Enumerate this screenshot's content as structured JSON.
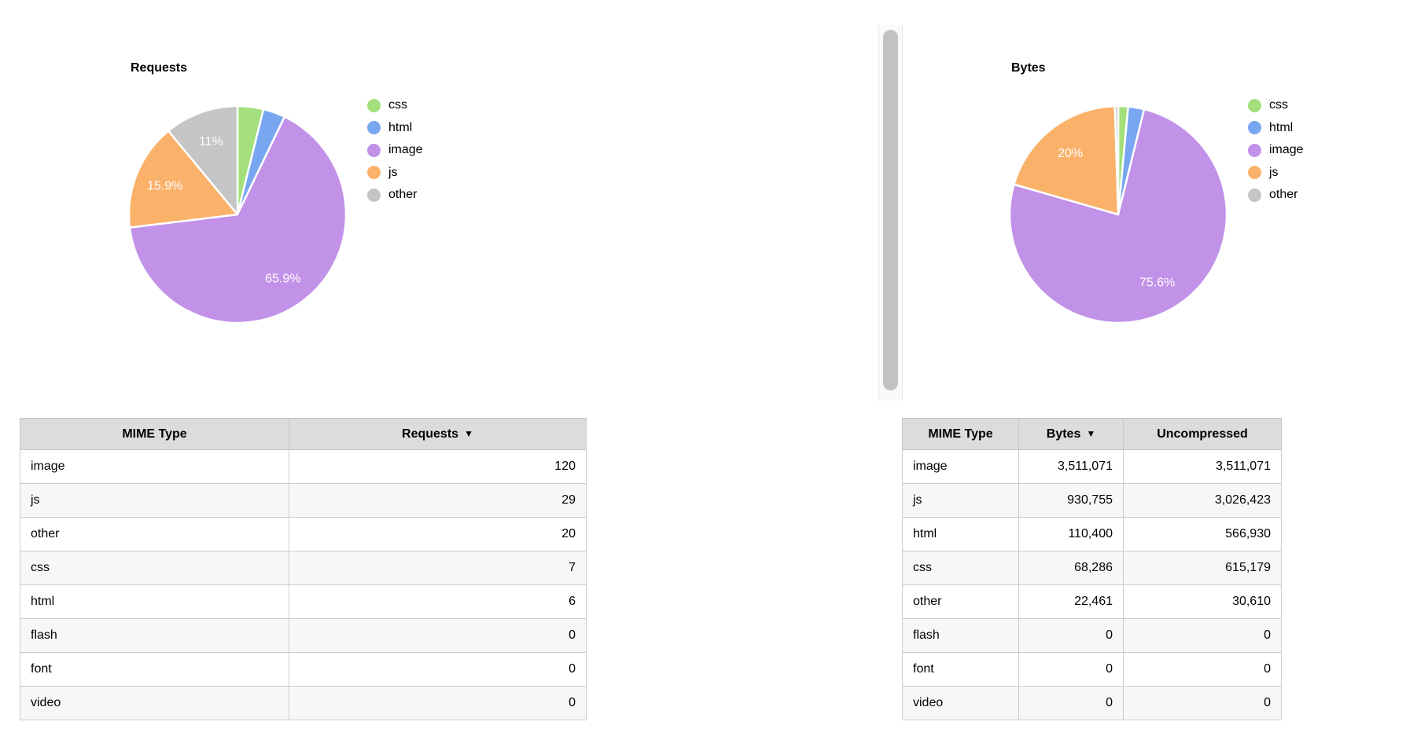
{
  "colors": {
    "css": "#a3e07c",
    "html": "#78a6f0",
    "image": "#c192e8",
    "js": "#fab26b",
    "other": "#c5c5c5",
    "pie_label_text": "#ffffff",
    "table_header_bg": "#dcdcdc",
    "table_row_alt_bg": "#f7f7f7",
    "table_border": "#cccccc",
    "scrollbar_thumb": "#c2c2c2",
    "scrollbar_track": "#fafafa"
  },
  "chart_data": [
    {
      "type": "pie",
      "title": "Requests",
      "legend_position": "right",
      "slices": [
        {
          "label": "css",
          "value": 7,
          "percent": 3.8,
          "percent_label": ""
        },
        {
          "label": "html",
          "value": 6,
          "percent": 3.3,
          "percent_label": ""
        },
        {
          "label": "image",
          "value": 120,
          "percent": 65.9,
          "percent_label": "65.9%"
        },
        {
          "label": "js",
          "value": 29,
          "percent": 15.9,
          "percent_label": "15.9%"
        },
        {
          "label": "other",
          "value": 20,
          "percent": 11,
          "percent_label": "11%"
        }
      ]
    },
    {
      "type": "pie",
      "title": "Bytes",
      "legend_position": "right",
      "slices": [
        {
          "label": "css",
          "value": 68286,
          "percent": 1.5,
          "percent_label": ""
        },
        {
          "label": "html",
          "value": 110400,
          "percent": 2.4,
          "percent_label": ""
        },
        {
          "label": "image",
          "value": 3511071,
          "percent": 75.6,
          "percent_label": "75.6%"
        },
        {
          "label": "js",
          "value": 930755,
          "percent": 20,
          "percent_label": "20%"
        },
        {
          "label": "other",
          "value": 22461,
          "percent": 0.5,
          "percent_label": ""
        }
      ]
    },
    {
      "type": "table",
      "title": "Requests breakdown",
      "columns": [
        {
          "label": "MIME Type",
          "sort_icon": ""
        },
        {
          "label": "Requests",
          "sort_icon": "▼"
        }
      ],
      "align": [
        "left",
        "right"
      ],
      "rows": [
        [
          "image",
          "120"
        ],
        [
          "js",
          "29"
        ],
        [
          "other",
          "20"
        ],
        [
          "css",
          "7"
        ],
        [
          "html",
          "6"
        ],
        [
          "flash",
          "0"
        ],
        [
          "font",
          "0"
        ],
        [
          "video",
          "0"
        ]
      ]
    },
    {
      "type": "table",
      "title": "Bytes breakdown",
      "columns": [
        {
          "label": "MIME Type",
          "sort_icon": ""
        },
        {
          "label": "Bytes",
          "sort_icon": "▼"
        },
        {
          "label": "Uncompressed",
          "sort_icon": ""
        }
      ],
      "align": [
        "left",
        "right",
        "right"
      ],
      "rows": [
        [
          "image",
          "3,511,071",
          "3,511,071"
        ],
        [
          "js",
          "930,755",
          "3,026,423"
        ],
        [
          "html",
          "110,400",
          "566,930"
        ],
        [
          "css",
          "68,286",
          "615,179"
        ],
        [
          "other",
          "22,461",
          "30,610"
        ],
        [
          "flash",
          "0",
          "0"
        ],
        [
          "font",
          "0",
          "0"
        ],
        [
          "video",
          "0",
          "0"
        ]
      ]
    }
  ]
}
